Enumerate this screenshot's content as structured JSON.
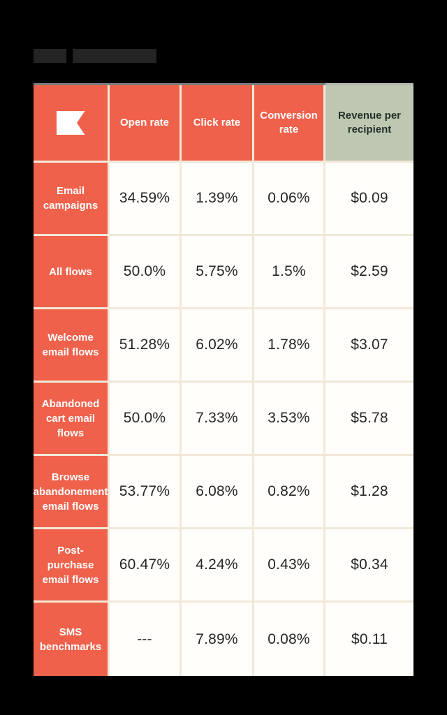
{
  "page": {
    "background_color": "#000000",
    "redacted_title_bars": {
      "count": 2,
      "color": "#242424"
    }
  },
  "brand": {
    "logo_icon": "klaviyo-flag-icon",
    "logo_color": "#ffffff"
  },
  "colors": {
    "accent_salmon": "#ef614b",
    "accent_sage": "#bec7b1",
    "separator_cream": "#f2e8d8",
    "cell_white": "#fffefb",
    "value_text": "#262626",
    "top_border_dark": "#7c7c7c",
    "top_border_light": "#b4b7ae"
  },
  "chart_data": {
    "type": "table",
    "title": "",
    "legend_position": "none",
    "columns": [
      "Open rate",
      "Click rate",
      "Conversion rate",
      "Revenue per recipient"
    ],
    "rows": [
      {
        "label": "Email campaigns",
        "values": [
          "34.59%",
          "1.39%",
          "0.06%",
          "$0.09"
        ]
      },
      {
        "label": "All flows",
        "values": [
          "50.0%",
          "5.75%",
          "1.5%",
          "$2.59"
        ]
      },
      {
        "label": "Welcome email flows",
        "values": [
          "51.28%",
          "6.02%",
          "1.78%",
          "$3.07"
        ]
      },
      {
        "label": "Abandoned cart email flows",
        "values": [
          "50.0%",
          "7.33%",
          "3.53%",
          "$5.78"
        ]
      },
      {
        "label": "Browse abandonement email flows",
        "values": [
          "53.77%",
          "6.08%",
          "0.82%",
          "$1.28"
        ]
      },
      {
        "label": "Post-purchase email flows",
        "values": [
          "60.47%",
          "4.24%",
          "0.43%",
          "$0.34"
        ]
      },
      {
        "label": "SMS benchmarks",
        "values": [
          "---",
          "7.89%",
          "0.08%",
          "$0.11"
        ]
      }
    ]
  }
}
